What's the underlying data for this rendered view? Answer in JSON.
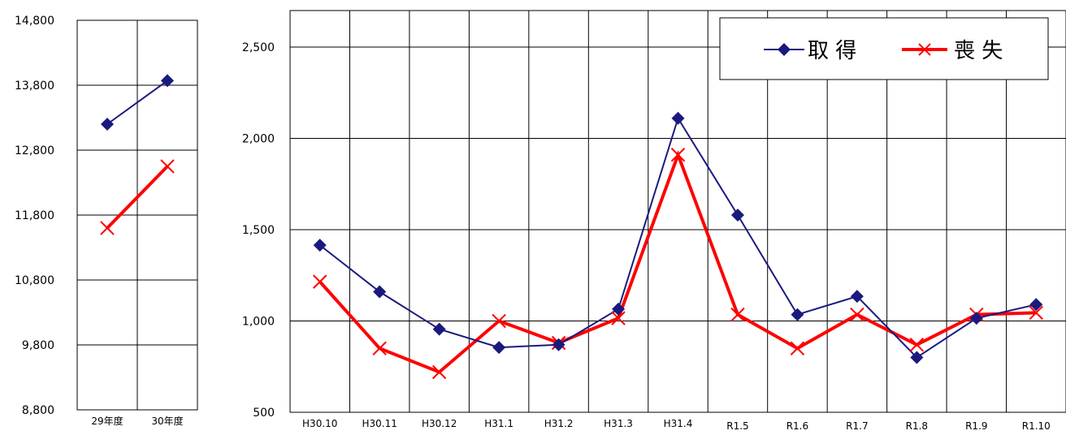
{
  "chart_data": [
    {
      "type": "line",
      "categories": [
        "29年度",
        "30年度"
      ],
      "ylim": [
        8800,
        14800
      ],
      "yticks": [
        "14,800",
        "13,800",
        "12,800",
        "11,800",
        "10,800",
        "9,800",
        "8,800"
      ],
      "grid": true,
      "series": [
        {
          "name": "取 得",
          "values": [
            13200,
            13870
          ]
        },
        {
          "name": "喪 失",
          "values": [
            11600,
            12550
          ]
        }
      ]
    },
    {
      "type": "line",
      "categories": [
        "H30.10",
        "H30.11",
        "H30.12",
        "H31.1",
        "H31.2",
        "H31.3",
        "H31.4",
        "R1.5",
        "R1.6",
        "R1.7",
        "R1.8",
        "R1.9",
        "R1.10"
      ],
      "ylim": [
        500,
        2700
      ],
      "yticks": [
        "2,500",
        "2,000",
        "1,500",
        "1,000",
        "500"
      ],
      "grid": true,
      "legend_position": "top-right",
      "series": [
        {
          "name": "取 得",
          "values": [
            1415,
            1160,
            955,
            855,
            870,
            1065,
            2110,
            1580,
            1035,
            1135,
            800,
            1015,
            1090
          ]
        },
        {
          "name": "喪 失",
          "values": [
            1215,
            850,
            720,
            1000,
            880,
            1015,
            1910,
            1035,
            850,
            1035,
            870,
            1035,
            1045
          ]
        }
      ]
    }
  ],
  "colors": {
    "acquire": "#1a1a7e",
    "loss": "#ff0000",
    "grid": "#000000"
  }
}
